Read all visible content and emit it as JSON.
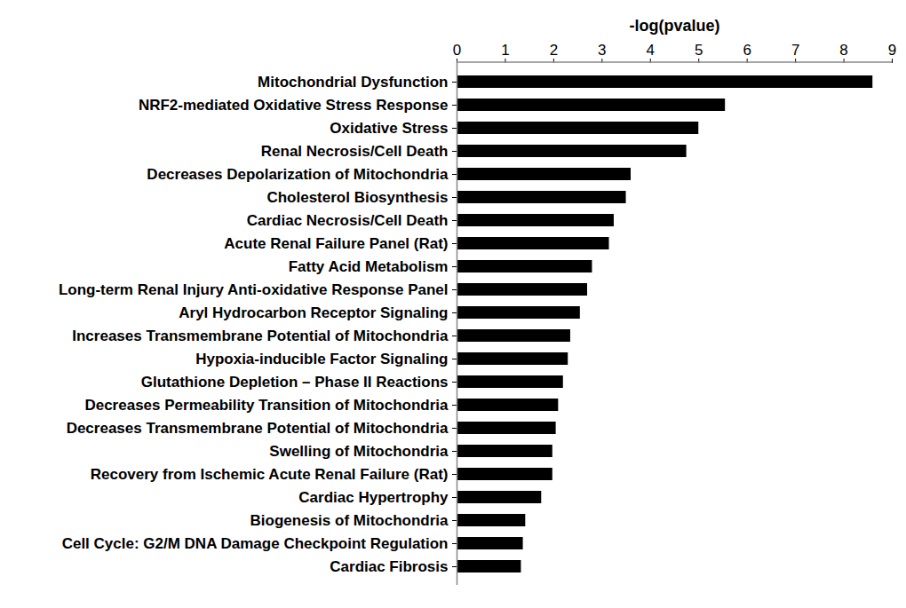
{
  "chart_data": {
    "type": "bar",
    "orientation": "horizontal",
    "x_label": "-log(pvalue)",
    "categories": [
      "Mitochondrial Dysfunction",
      "NRF2-mediated Oxidative Stress Response",
      "Oxidative Stress",
      "Renal Necrosis/Cell Death",
      "Decreases Depolarization of Mitochondria",
      "Cholesterol Biosynthesis",
      "Cardiac Necrosis/Cell Death",
      "Acute Renal Failure Panel (Rat)",
      "Fatty Acid Metabolism",
      "Long-term Renal Injury Anti-oxidative Response Panel",
      "Aryl Hydrocarbon Receptor Signaling",
      "Increases Transmembrane Potential of Mitochondria",
      "Hypoxia-inducible Factor Signaling",
      "Glutathione Depletion – Phase II Reactions",
      "Decreases Permeability Transition of Mitochondria",
      "Decreases Transmembrane Potential of Mitochondria",
      "Swelling of Mitochondria",
      "Recovery from Ischemic Acute Renal Failure (Rat)",
      "Cardiac Hypertrophy",
      "Biogenesis of Mitochondria",
      "Cell Cycle: G2/M DNA Damage Checkpoint Regulation",
      "Cardiac Fibrosis"
    ],
    "values": [
      8.6,
      5.55,
      5.0,
      4.75,
      3.6,
      3.5,
      3.25,
      3.15,
      2.8,
      2.7,
      2.55,
      2.35,
      2.3,
      2.2,
      2.1,
      2.05,
      1.98,
      1.98,
      1.75,
      1.42,
      1.37,
      1.33
    ],
    "color": "#000000",
    "xlim": [
      0,
      9
    ],
    "xticks": [
      0,
      1,
      2,
      3,
      4,
      5,
      6,
      7,
      8,
      9
    ],
    "grid": false
  }
}
